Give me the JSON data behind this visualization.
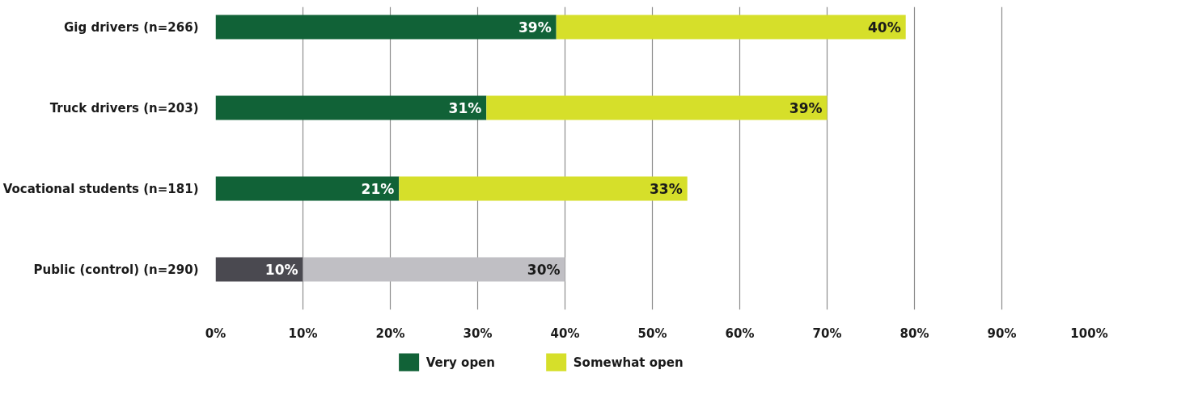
{
  "chart_data": {
    "type": "bar",
    "orientation": "horizontal",
    "stacked": true,
    "categories": [
      "Gig drivers (n=266)",
      "Truck drivers (n=203)",
      "Vocational students (n=181)",
      "Public (control) (n=290)"
    ],
    "series": [
      {
        "name": "Very open",
        "color": "#116237",
        "colors": [
          "#116237",
          "#116237",
          "#116237",
          "#4a4950"
        ],
        "values": [
          39,
          31,
          21,
          10
        ],
        "value_labels": [
          "39%",
          "31%",
          "21%",
          "10%"
        ]
      },
      {
        "name": "Somewhat open",
        "color": "#d6df2a",
        "colors": [
          "#d6df2a",
          "#d6df2a",
          "#d6df2a",
          "#c0bfc4"
        ],
        "values": [
          40,
          39,
          33,
          30
        ],
        "value_labels": [
          "40%",
          "39%",
          "33%",
          "30%"
        ]
      }
    ],
    "xlim": [
      0,
      100
    ],
    "xticks": [
      {
        "value": 0,
        "label": "0%"
      },
      {
        "value": 10,
        "label": "10%"
      },
      {
        "value": 20,
        "label": "20%"
      },
      {
        "value": 30,
        "label": "30%"
      },
      {
        "value": 40,
        "label": "40%"
      },
      {
        "value": 50,
        "label": "50%"
      },
      {
        "value": 60,
        "label": "60%"
      },
      {
        "value": 70,
        "label": "70%"
      },
      {
        "value": 80,
        "label": "80%"
      },
      {
        "value": 90,
        "label": "90%"
      },
      {
        "value": 100,
        "label": "100%"
      }
    ],
    "grid": "x",
    "legend": "bottom"
  }
}
